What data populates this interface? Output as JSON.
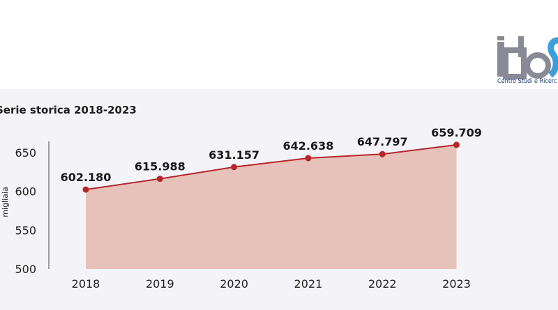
{
  "logo": {
    "letters": "idoS",
    "caption": "Centro Studi e Ricerc"
  },
  "chart_data": {
    "type": "area",
    "title": "Serie storica 2018-2023",
    "ylabel": "migliaia",
    "categories": [
      "2018",
      "2019",
      "2020",
      "2021",
      "2022",
      "2023"
    ],
    "values": [
      602.18,
      615.988,
      631.157,
      642.638,
      647.797,
      659.709
    ],
    "value_labels": [
      "602.180",
      "615.988",
      "631.157",
      "642.638",
      "647.797",
      "659.709"
    ],
    "yticks": [
      500,
      550,
      600,
      650
    ],
    "ylim": [
      500,
      660
    ],
    "grid": false,
    "colors": {
      "line": "#b5262b",
      "fill": "#e6bdb2",
      "axis": "#444444"
    }
  }
}
